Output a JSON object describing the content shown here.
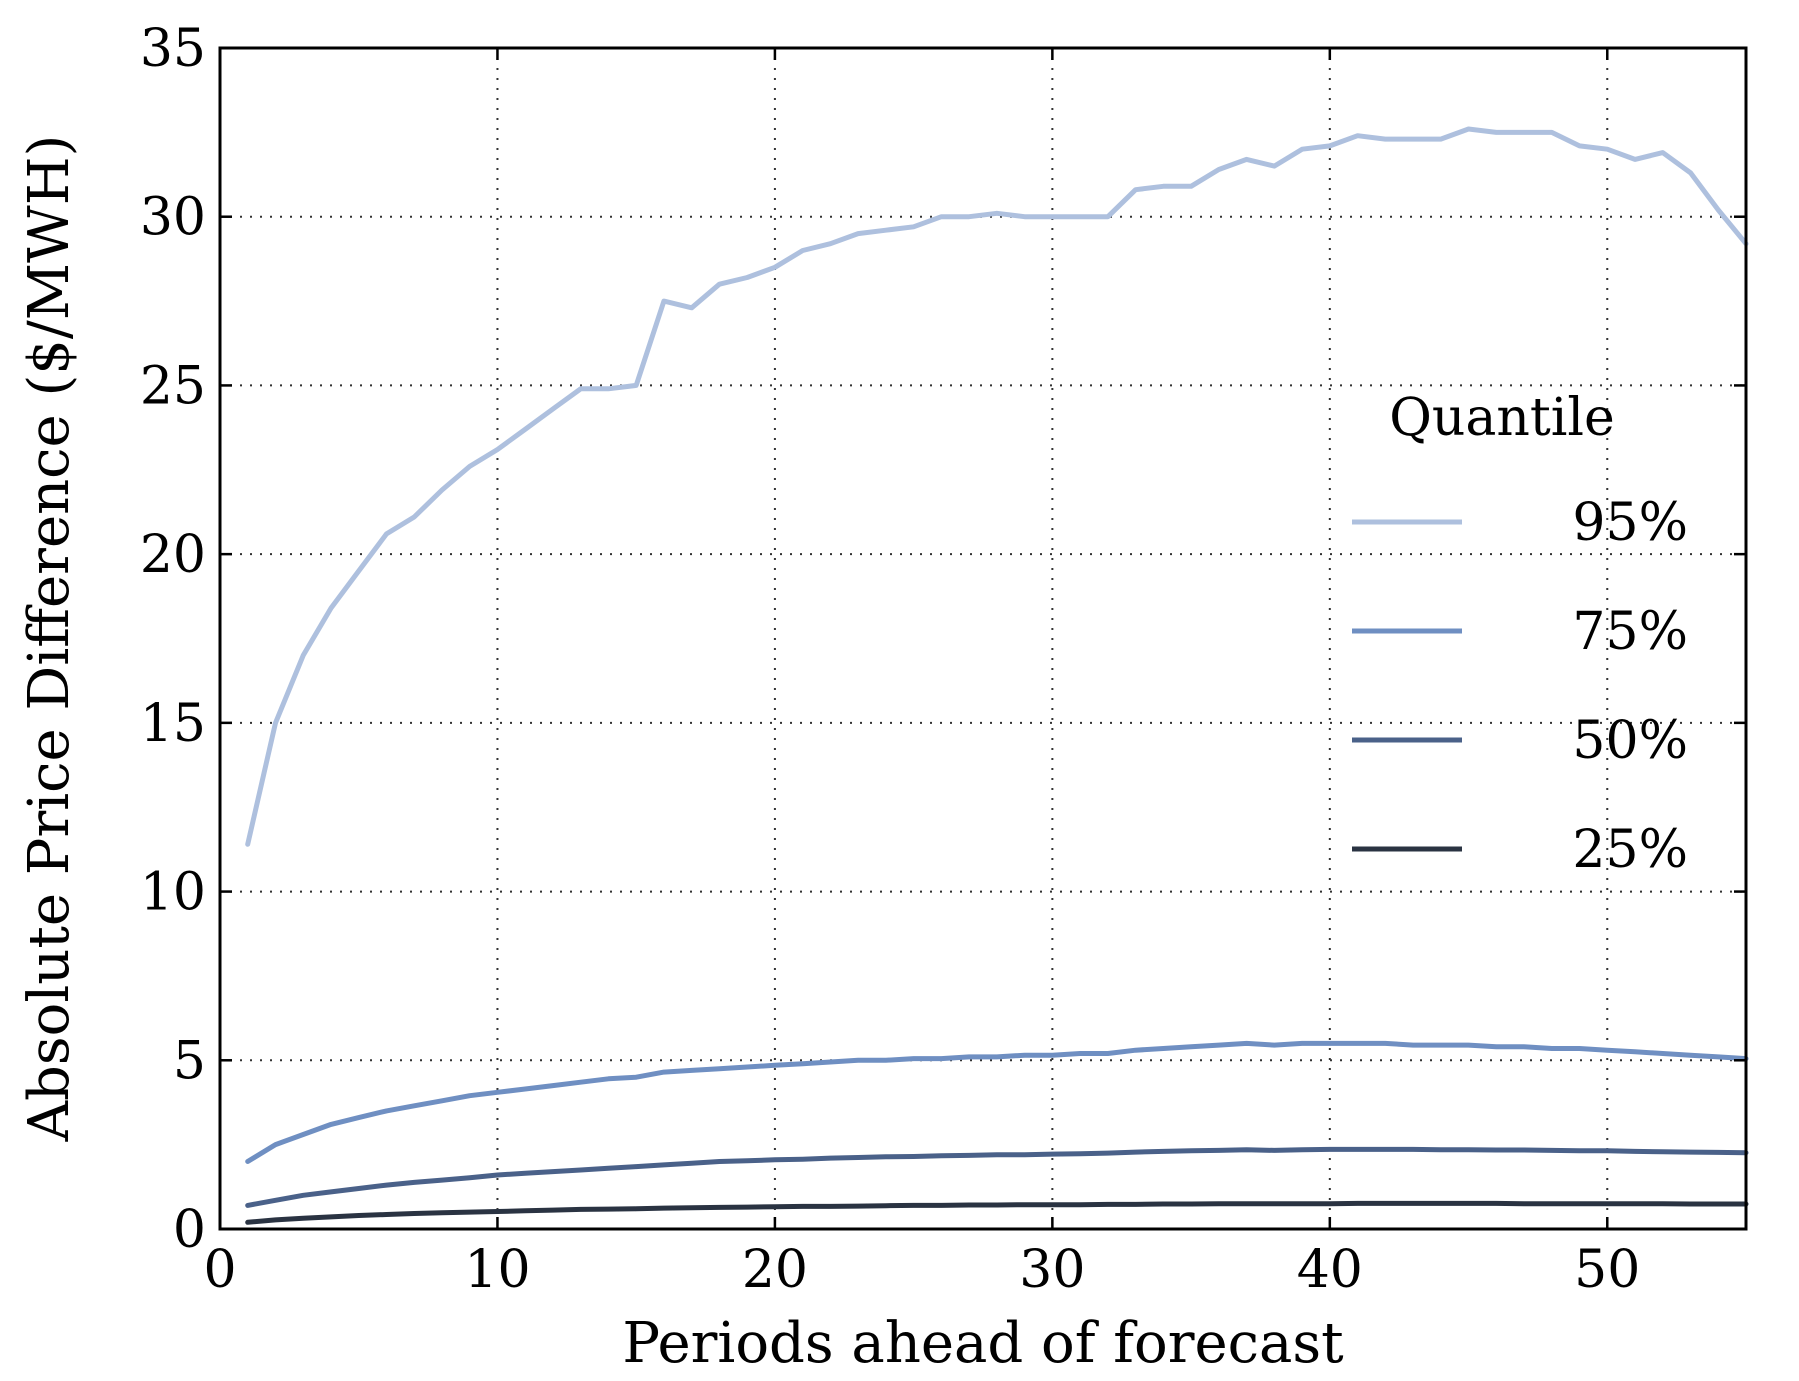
{
  "chart_data": {
    "type": "line",
    "title": "",
    "xlabel": "Periods ahead of forecast",
    "ylabel": "Absolute Price Difference ($/MWH)",
    "xlim": [
      0,
      55
    ],
    "ylim": [
      0,
      35
    ],
    "xticks": [
      "0",
      "10",
      "20",
      "30",
      "40",
      "50"
    ],
    "yticks": [
      "0",
      "5",
      "10",
      "15",
      "20",
      "25",
      "30",
      "35"
    ],
    "grid": true,
    "legend": {
      "title": "Quantile",
      "placement": "center-right"
    },
    "x": [
      1,
      2,
      3,
      4,
      5,
      6,
      7,
      8,
      9,
      10,
      11,
      12,
      13,
      14,
      15,
      16,
      17,
      18,
      19,
      20,
      21,
      22,
      23,
      24,
      25,
      26,
      27,
      28,
      29,
      30,
      31,
      32,
      33,
      34,
      35,
      36,
      37,
      38,
      39,
      40,
      41,
      42,
      43,
      44,
      45,
      46,
      47,
      48,
      49,
      50,
      51,
      52,
      53,
      54,
      55
    ],
    "series": [
      {
        "name": "95%",
        "color": "#aec0de",
        "values": [
          11.4,
          15.0,
          17.0,
          18.4,
          19.5,
          20.6,
          21.1,
          21.9,
          22.6,
          23.1,
          23.7,
          24.3,
          24.9,
          24.9,
          25.0,
          27.5,
          27.3,
          28.0,
          28.2,
          28.5,
          29.0,
          29.2,
          29.5,
          29.6,
          29.7,
          30.0,
          30.0,
          30.1,
          30.0,
          30.0,
          30.0,
          30.0,
          30.8,
          30.9,
          30.9,
          31.4,
          31.7,
          31.5,
          32.0,
          32.1,
          32.4,
          32.3,
          32.3,
          32.3,
          32.6,
          32.5,
          32.5,
          32.5,
          32.1,
          32.0,
          31.7,
          31.9,
          31.3,
          30.2,
          29.2
        ]
      },
      {
        "name": "75%",
        "color": "#6f8fc2",
        "values": [
          2.0,
          2.5,
          2.8,
          3.1,
          3.3,
          3.5,
          3.65,
          3.8,
          3.95,
          4.05,
          4.15,
          4.25,
          4.35,
          4.45,
          4.5,
          4.65,
          4.7,
          4.75,
          4.8,
          4.85,
          4.9,
          4.95,
          5.0,
          5.0,
          5.05,
          5.05,
          5.1,
          5.1,
          5.15,
          5.15,
          5.2,
          5.2,
          5.3,
          5.35,
          5.4,
          5.45,
          5.5,
          5.45,
          5.5,
          5.5,
          5.5,
          5.5,
          5.45,
          5.45,
          5.45,
          5.4,
          5.4,
          5.35,
          5.35,
          5.3,
          5.25,
          5.2,
          5.15,
          5.1,
          5.05
        ]
      },
      {
        "name": "50%",
        "color": "#4a6189",
        "values": [
          0.7,
          0.85,
          1.0,
          1.1,
          1.2,
          1.3,
          1.38,
          1.45,
          1.52,
          1.6,
          1.65,
          1.7,
          1.75,
          1.8,
          1.85,
          1.9,
          1.95,
          2.0,
          2.02,
          2.05,
          2.07,
          2.1,
          2.12,
          2.14,
          2.15,
          2.17,
          2.18,
          2.2,
          2.2,
          2.22,
          2.23,
          2.25,
          2.28,
          2.3,
          2.32,
          2.33,
          2.35,
          2.33,
          2.35,
          2.36,
          2.36,
          2.36,
          2.36,
          2.35,
          2.35,
          2.34,
          2.34,
          2.33,
          2.32,
          2.32,
          2.3,
          2.29,
          2.28,
          2.27,
          2.26
        ]
      },
      {
        "name": "25%",
        "color": "#2a3342",
        "values": [
          0.2,
          0.27,
          0.32,
          0.36,
          0.4,
          0.43,
          0.46,
          0.48,
          0.5,
          0.52,
          0.54,
          0.56,
          0.58,
          0.59,
          0.6,
          0.62,
          0.63,
          0.64,
          0.65,
          0.66,
          0.67,
          0.67,
          0.68,
          0.69,
          0.7,
          0.7,
          0.71,
          0.71,
          0.72,
          0.72,
          0.72,
          0.73,
          0.73,
          0.74,
          0.74,
          0.75,
          0.75,
          0.75,
          0.75,
          0.75,
          0.76,
          0.76,
          0.76,
          0.76,
          0.76,
          0.76,
          0.75,
          0.75,
          0.75,
          0.75,
          0.75,
          0.75,
          0.74,
          0.74,
          0.74
        ]
      }
    ]
  }
}
